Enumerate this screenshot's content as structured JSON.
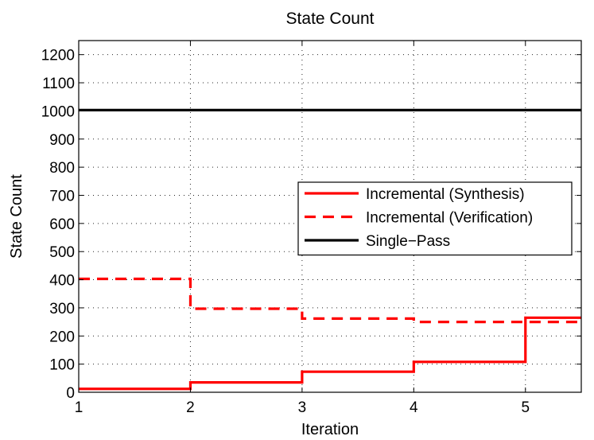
{
  "chart_data": {
    "type": "line",
    "title": "State Count",
    "xlabel": "Iteration",
    "ylabel": "State Count",
    "xlim": [
      1,
      5.5
    ],
    "ylim": [
      0,
      1250
    ],
    "xticks": [
      1,
      2,
      3,
      4,
      5
    ],
    "yticks": [
      0,
      100,
      200,
      300,
      400,
      500,
      600,
      700,
      800,
      900,
      1000,
      1100,
      1200
    ],
    "grid": true,
    "legend_position": "center-right",
    "series": [
      {
        "name": "Incremental (Synthesis)",
        "color": "#ff0000",
        "style": "solid",
        "step": "post",
        "x": [
          1,
          2,
          3,
          4,
          5,
          5.5
        ],
        "y": [
          12,
          35,
          73,
          108,
          265,
          265
        ]
      },
      {
        "name": "Incremental (Verification)",
        "color": "#ff0000",
        "style": "dashed",
        "step": "post",
        "x": [
          1,
          2,
          3,
          4,
          5,
          5.5
        ],
        "y": [
          403,
          297,
          262,
          250,
          250,
          250
        ]
      },
      {
        "name": "Single−Pass",
        "color": "#000000",
        "style": "solid",
        "step": "post",
        "x": [
          1,
          5.5
        ],
        "y": [
          1003,
          1003
        ]
      }
    ]
  }
}
